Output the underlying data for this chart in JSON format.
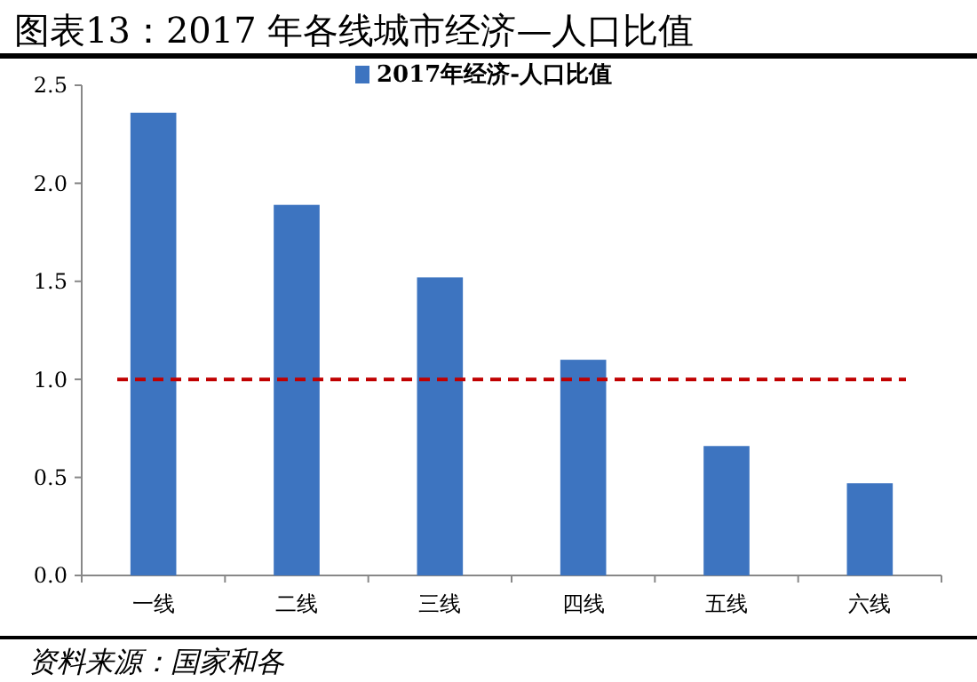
{
  "chart_data": {
    "type": "bar",
    "title": "图表13：2017 年各线城市经济—人口比值",
    "categories": [
      "一线",
      "二线",
      "三线",
      "四线",
      "五线",
      "六线"
    ],
    "series": [
      {
        "name": "2017年经济-人口比值",
        "color": "#3d74c0",
        "values": [
          2.36,
          1.89,
          1.52,
          1.1,
          0.66,
          0.47
        ]
      }
    ],
    "ylim": [
      0,
      2.5
    ],
    "yticks": [
      {
        "value": 0,
        "label": "0.0"
      },
      {
        "value": 0.5,
        "label": "0.5"
      },
      {
        "value": 1,
        "label": "1.0"
      },
      {
        "value": 1.5,
        "label": "1.5"
      },
      {
        "value": 2,
        "label": "2.0"
      },
      {
        "value": 2.5,
        "label": "2.5"
      }
    ],
    "ref_lines": [
      {
        "axis": "y",
        "value": 1,
        "color": "#c00000",
        "line_style": "dashed"
      }
    ],
    "legend": "top",
    "grid": false,
    "annotations": [
      "资料来源：国家和各"
    ]
  }
}
